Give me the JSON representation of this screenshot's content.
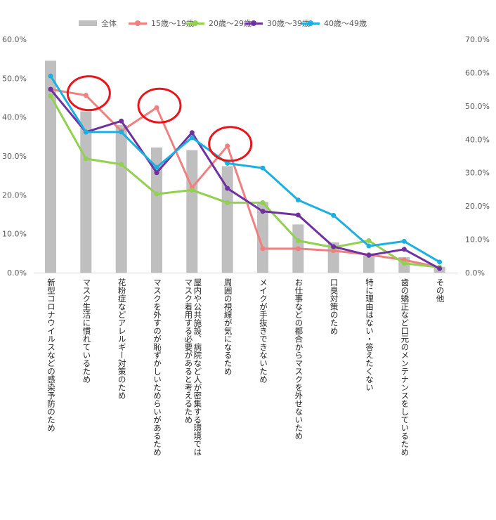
{
  "chart_data": {
    "type": "bar+line",
    "categories": [
      "新型コロナウイルスなどの感染予防のため",
      "マスク生活に慣れているため",
      "花粉症などアレルギー対策のため",
      "マスクを外すのが恥ずかしいためらいがあるため",
      "屋内や公共施設、病院など人が密集する環境ではマスク着用する必要があると考えるため",
      "周囲の視線が気になるため",
      "メイクが手抜きできないため",
      "お仕事などの都合からマスクを外せないため",
      "口臭対策のため",
      "特に理由はない・答えたくない",
      "歯の矯正など口元のメンテナンスをしているため",
      "その他"
    ],
    "series": [
      {
        "name": "全体",
        "kind": "bar",
        "axis": "left",
        "color": "#bfbfbf",
        "values": [
          54.5,
          41.5,
          38.0,
          32.2,
          31.5,
          27.4,
          18.2,
          12.4,
          7.8,
          5.0,
          4.0,
          1.5
        ]
      },
      {
        "name": "15歳～19歳",
        "kind": "line",
        "axis": "right",
        "color": "#f08080",
        "values": [
          55.0,
          53.2,
          42.5,
          49.5,
          25.5,
          38.0,
          7.2,
          7.2,
          6.6,
          5.4,
          3.8,
          1.6
        ]
      },
      {
        "name": "20歳～29歳",
        "kind": "line",
        "axis": "right",
        "color": "#92d050",
        "values": [
          53.0,
          34.2,
          32.5,
          23.6,
          24.8,
          21.0,
          21.0,
          9.6,
          7.6,
          9.6,
          2.8,
          1.6
        ]
      },
      {
        "name": "30歳～39歳",
        "kind": "line",
        "axis": "right",
        "color": "#7030a0",
        "values": [
          55.0,
          42.2,
          45.5,
          30.0,
          42.0,
          25.3,
          18.4,
          17.3,
          7.8,
          5.2,
          7.0,
          1.2
        ]
      },
      {
        "name": "40歳～49歳",
        "kind": "line",
        "axis": "right",
        "color": "#1cb0e0",
        "values": [
          59.0,
          42.2,
          42.2,
          31.6,
          40.5,
          32.8,
          31.4,
          21.8,
          17.2,
          8.0,
          9.4,
          3.2
        ]
      }
    ],
    "left_axis": {
      "min": 0,
      "max": 60,
      "step": 10,
      "tick_labels": [
        "0.0%",
        "10.0%",
        "20.0%",
        "30.0%",
        "40.0%",
        "50.0%",
        "60.0%"
      ]
    },
    "right_axis": {
      "min": 0,
      "max": 70,
      "step": 10,
      "tick_labels": [
        "0.0%",
        "10.0%",
        "20.0%",
        "30.0%",
        "40.0%",
        "50.0%",
        "60.0%",
        "70.0%"
      ]
    },
    "highlight_circles": [
      {
        "category_index": 1,
        "series": "15歳～19歳"
      },
      {
        "category_index": 3,
        "series": "15歳～19歳"
      },
      {
        "category_index": 5,
        "series": "15歳～19歳"
      }
    ],
    "legend": [
      "全体",
      "15歳～19歳",
      "20歳～29歳",
      "30歳～39歳",
      "40歳～49歳"
    ],
    "grid": false
  }
}
